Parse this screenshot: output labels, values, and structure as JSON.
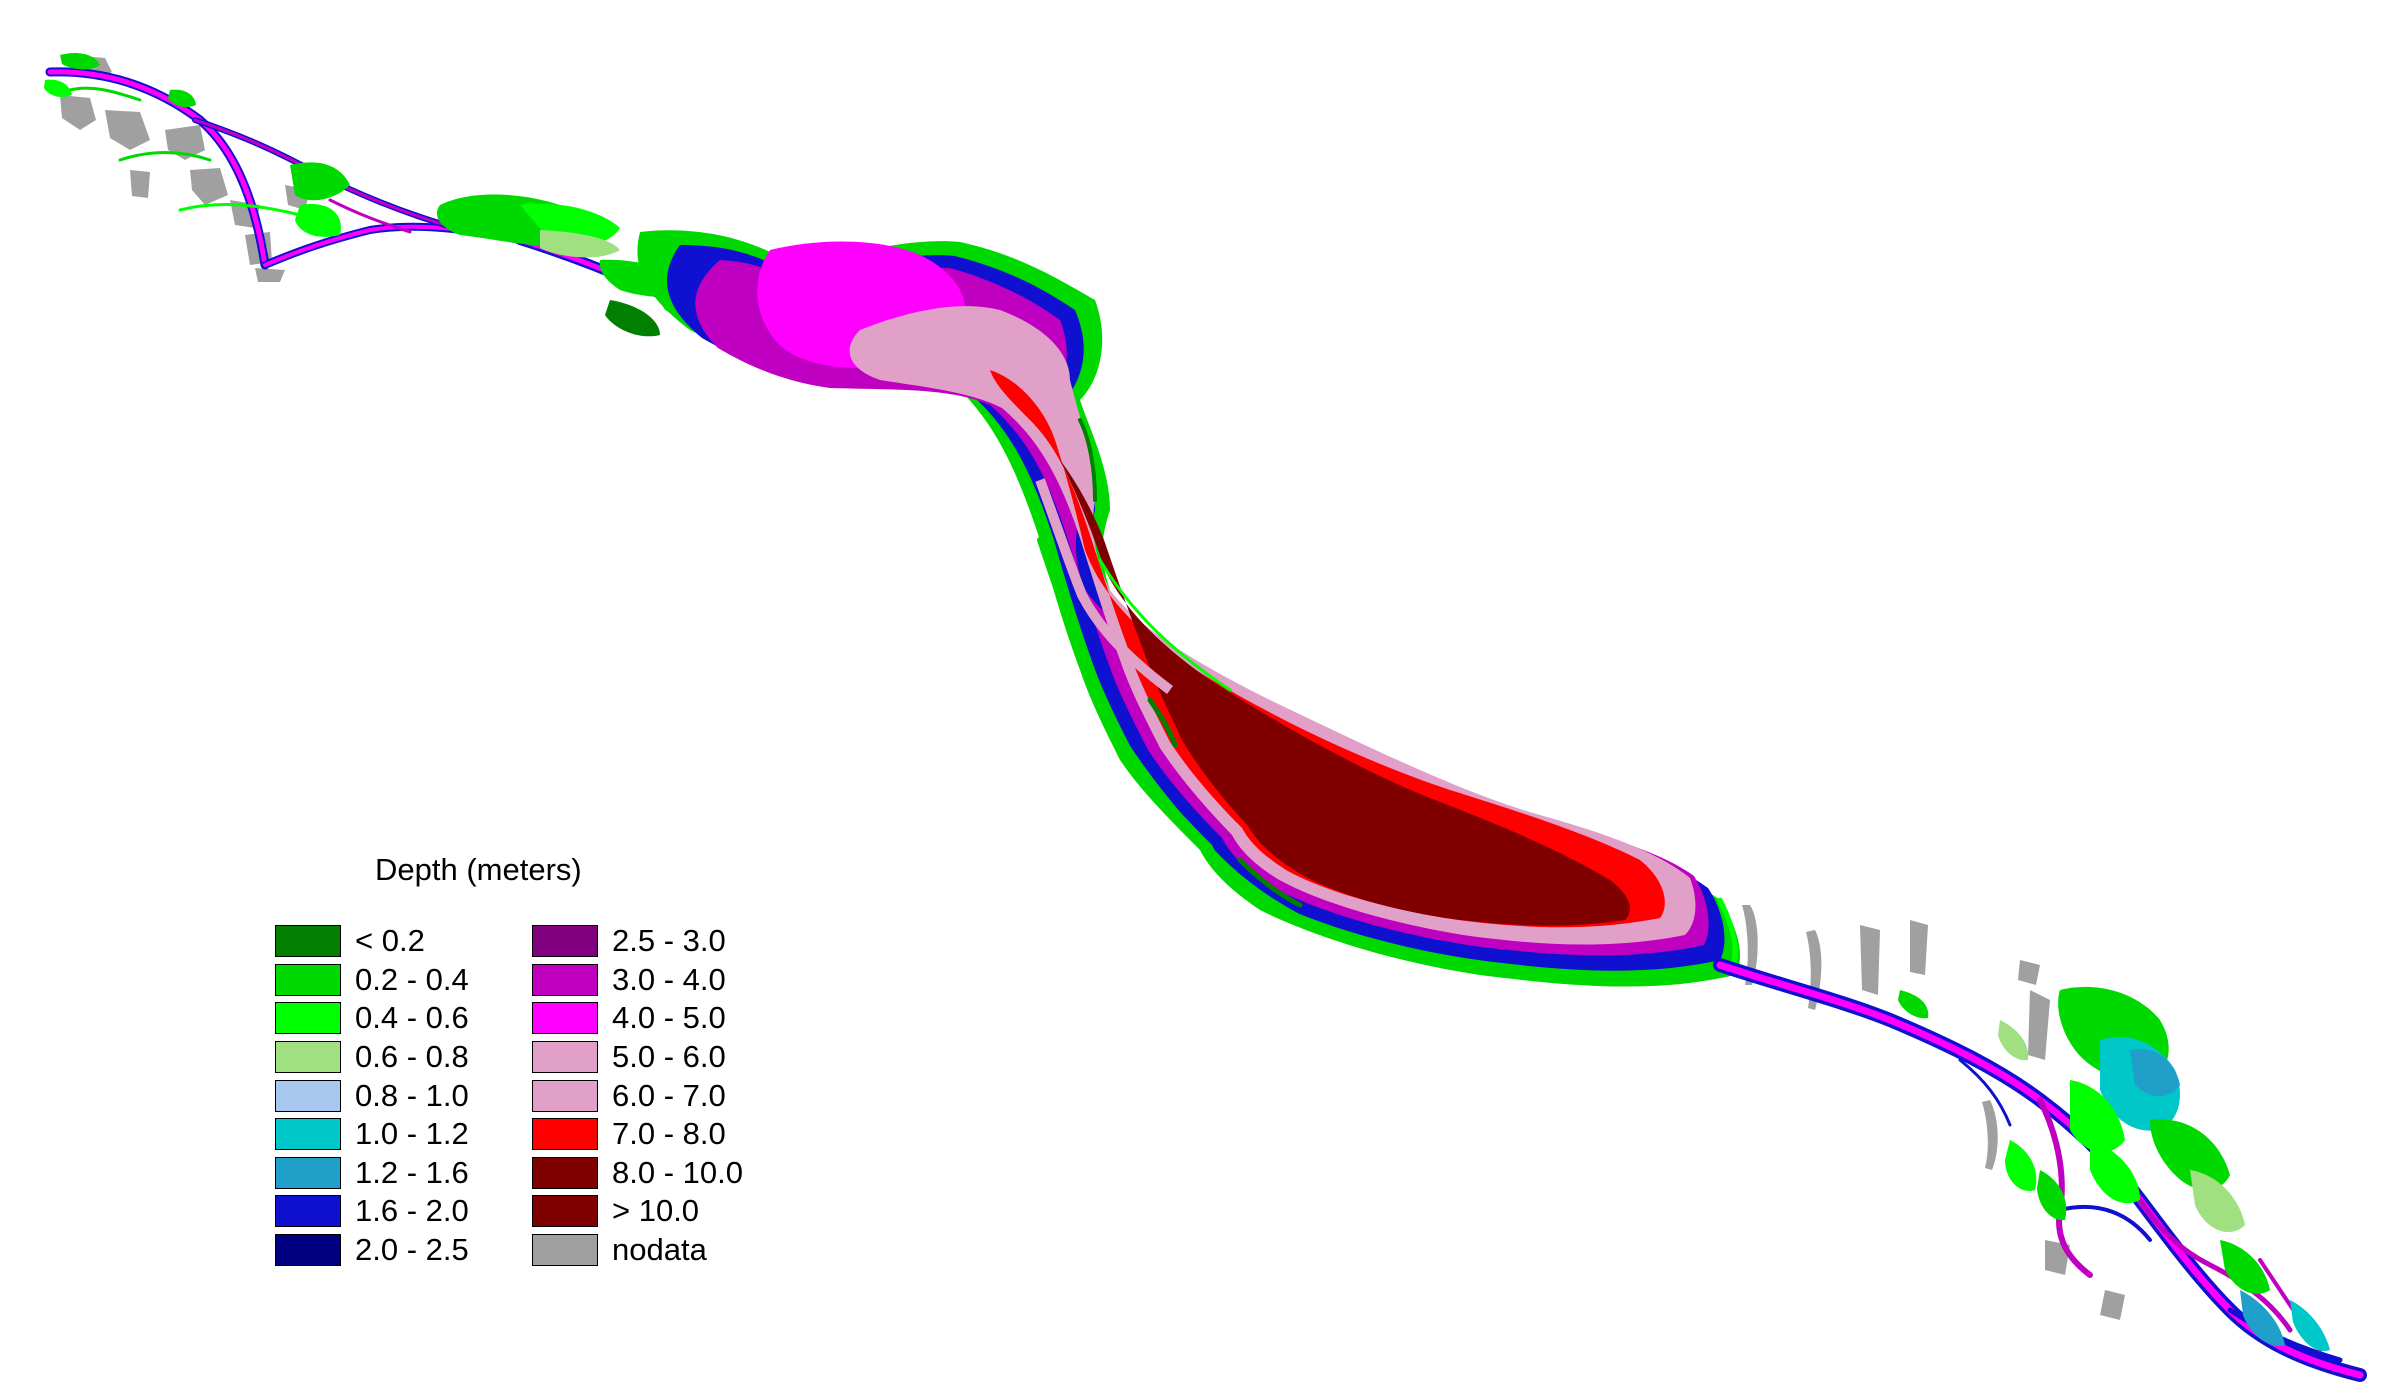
{
  "legend": {
    "title": "Depth (meters)",
    "columns": [
      [
        {
          "label": "< 0.2",
          "color": "#007F00"
        },
        {
          "label": "0.2 - 0.4",
          "color": "#00D900"
        },
        {
          "label": "0.4 - 0.6",
          "color": "#00FF00"
        },
        {
          "label": "0.6 - 0.8",
          "color": "#A0E080"
        },
        {
          "label": "0.8 - 1.0",
          "color": "#A8C8F0"
        },
        {
          "label": "1.0 - 1.2",
          "color": "#00C8C8"
        },
        {
          "label": "1.2 - 1.6",
          "color": "#20A0C8"
        },
        {
          "label": "1.6 - 2.0",
          "color": "#1010D0"
        },
        {
          "label": "2.0 - 2.5",
          "color": "#000080"
        }
      ],
      [
        {
          "label": "2.5 - 3.0",
          "color": "#800080"
        },
        {
          "label": "3.0 - 4.0",
          "color": "#C000C0"
        },
        {
          "label": "4.0 - 5.0",
          "color": "#FF00FF"
        },
        {
          "label": "5.0 - 6.0",
          "color": "#E0A0C8"
        },
        {
          "label": "6.0 - 7.0",
          "color": "#E0A0C8"
        },
        {
          "label": "7.0 - 8.0",
          "color": "#FF0000"
        },
        {
          "label": "8.0 - 10.0",
          "color": "#800000"
        },
        {
          "label": "> 10.0",
          "color": "#800000"
        },
        {
          "label": "nodata",
          "color": "#A0A0A0"
        }
      ]
    ]
  }
}
